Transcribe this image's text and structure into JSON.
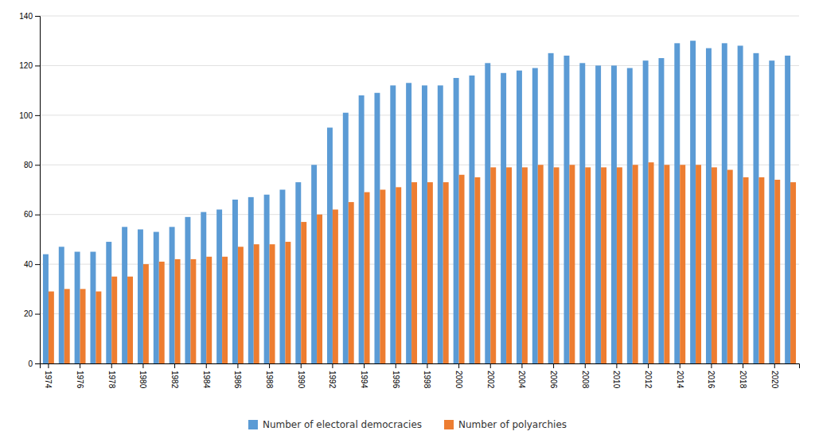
{
  "chart_data": {
    "type": "bar",
    "categories": [
      1974,
      null,
      1976,
      null,
      1978,
      null,
      1980,
      null,
      1982,
      null,
      1984,
      null,
      1986,
      null,
      1988,
      null,
      1990,
      null,
      1992,
      null,
      1994,
      null,
      1996,
      null,
      1998,
      null,
      2000,
      null,
      2002,
      null,
      2004,
      null,
      2006,
      null,
      2008,
      null,
      2010,
      null,
      2012,
      null,
      2014,
      null,
      2016,
      null,
      2018,
      null,
      2020,
      null
    ],
    "series": [
      {
        "name": "Number of electoral democracies",
        "color": "#5b9bd5",
        "values": [
          44,
          47,
          45,
          45,
          49,
          55,
          54,
          53,
          55,
          59,
          61,
          62,
          66,
          67,
          68,
          70,
          73,
          80,
          95,
          101,
          108,
          109,
          112,
          113,
          112,
          112,
          115,
          116,
          121,
          117,
          118,
          119,
          125,
          124,
          121,
          120,
          120,
          119,
          122,
          123,
          129,
          130,
          127,
          129,
          128,
          125,
          122,
          124
        ]
      },
      {
        "name": "Number of polyarchies",
        "color": "#ed7d31",
        "values": [
          29,
          30,
          30,
          29,
          35,
          35,
          40,
          41,
          42,
          42,
          43,
          43,
          47,
          48,
          48,
          49,
          57,
          60,
          62,
          65,
          69,
          70,
          71,
          73,
          73,
          73,
          76,
          75,
          79,
          79,
          79,
          80,
          79,
          80,
          79,
          79,
          79,
          80,
          81,
          80,
          80,
          80,
          79,
          78,
          75,
          75,
          74,
          73
        ]
      }
    ],
    "ylim": [
      0,
      140
    ],
    "yticks": [
      0,
      20,
      40,
      60,
      80,
      100,
      120,
      140
    ],
    "grid": true,
    "legend": "bottom"
  }
}
